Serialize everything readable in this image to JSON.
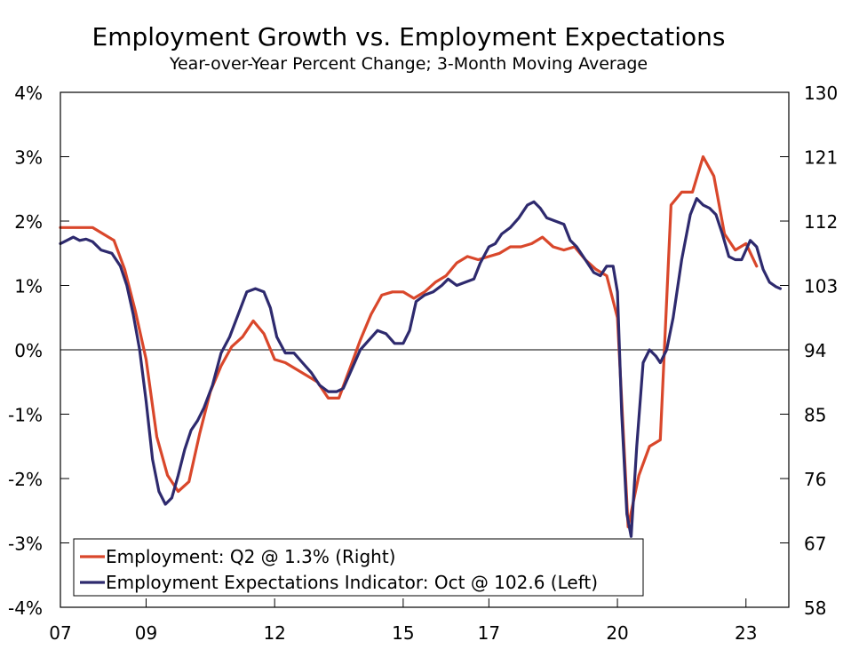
{
  "chart_data": {
    "type": "line",
    "title": "Employment Growth vs. Employment Expectations",
    "subtitle": "Year-over-Year Percent Change; 3-Month Moving Average",
    "x_axis": {
      "min": 2007,
      "max": 2024,
      "ticks": [
        2007,
        2009,
        2012,
        2015,
        2017,
        2020,
        2023
      ],
      "tick_labels": [
        "07",
        "09",
        "12",
        "15",
        "17",
        "20",
        "23"
      ]
    },
    "y_left": {
      "min": -4,
      "max": 4,
      "ticks": [
        -4,
        -3,
        -2,
        -1,
        0,
        1,
        2,
        3,
        4
      ],
      "tick_labels": [
        "-4%",
        "-3%",
        "-2%",
        "-1%",
        "0%",
        "1%",
        "2%",
        "3%",
        "4%"
      ]
    },
    "y_right": {
      "min": 58,
      "max": 130,
      "ticks": [
        58,
        67,
        76,
        85,
        94,
        103,
        112,
        121,
        130
      ],
      "tick_labels": [
        "58",
        "67",
        "76",
        "85",
        "94",
        "103",
        "112",
        "121",
        "130"
      ]
    },
    "zero_line": 0,
    "colors": {
      "employment": "#d9472b",
      "expectations": "#2e2a6e",
      "axis": "#000000"
    },
    "legend": {
      "placement": "bottom-left",
      "items": [
        {
          "label": "Employment: Q2 @ 1.3% (Right)",
          "series": "employment"
        },
        {
          "label": "Employment Expectations Indicator: Oct @ 102.6 (Left)",
          "series": "expectations"
        }
      ]
    },
    "series": [
      {
        "name": "employment",
        "color": "#d9472b",
        "points": [
          [
            2007.0,
            1.9
          ],
          [
            2007.25,
            1.9
          ],
          [
            2007.5,
            1.9
          ],
          [
            2007.75,
            1.9
          ],
          [
            2008.0,
            1.8
          ],
          [
            2008.25,
            1.7
          ],
          [
            2008.5,
            1.25
          ],
          [
            2008.75,
            0.6
          ],
          [
            2009.0,
            -0.15
          ],
          [
            2009.25,
            -1.35
          ],
          [
            2009.5,
            -1.95
          ],
          [
            2009.75,
            -2.2
          ],
          [
            2010.0,
            -2.05
          ],
          [
            2010.25,
            -1.3
          ],
          [
            2010.5,
            -0.65
          ],
          [
            2010.75,
            -0.25
          ],
          [
            2011.0,
            0.05
          ],
          [
            2011.25,
            0.2
          ],
          [
            2011.5,
            0.45
          ],
          [
            2011.75,
            0.25
          ],
          [
            2012.0,
            -0.15
          ],
          [
            2012.25,
            -0.2
          ],
          [
            2012.5,
            -0.3
          ],
          [
            2012.75,
            -0.4
          ],
          [
            2013.0,
            -0.5
          ],
          [
            2013.25,
            -0.75
          ],
          [
            2013.5,
            -0.75
          ],
          [
            2013.75,
            -0.3
          ],
          [
            2014.0,
            0.15
          ],
          [
            2014.25,
            0.55
          ],
          [
            2014.5,
            0.85
          ],
          [
            2014.75,
            0.9
          ],
          [
            2015.0,
            0.9
          ],
          [
            2015.25,
            0.8
          ],
          [
            2015.5,
            0.9
          ],
          [
            2015.75,
            1.05
          ],
          [
            2016.0,
            1.15
          ],
          [
            2016.25,
            1.35
          ],
          [
            2016.5,
            1.45
          ],
          [
            2016.75,
            1.4
          ],
          [
            2017.0,
            1.45
          ],
          [
            2017.25,
            1.5
          ],
          [
            2017.5,
            1.6
          ],
          [
            2017.75,
            1.6
          ],
          [
            2018.0,
            1.65
          ],
          [
            2018.25,
            1.75
          ],
          [
            2018.5,
            1.6
          ],
          [
            2018.75,
            1.55
          ],
          [
            2019.0,
            1.6
          ],
          [
            2019.25,
            1.4
          ],
          [
            2019.5,
            1.25
          ],
          [
            2019.75,
            1.15
          ],
          [
            2020.0,
            0.5
          ],
          [
            2020.25,
            -2.75
          ],
          [
            2020.5,
            -1.95
          ],
          [
            2020.75,
            -1.5
          ],
          [
            2021.0,
            -1.4
          ],
          [
            2021.25,
            2.25
          ],
          [
            2021.5,
            2.45
          ],
          [
            2021.75,
            2.45
          ],
          [
            2022.0,
            3.0
          ],
          [
            2022.25,
            2.7
          ],
          [
            2022.5,
            1.8
          ],
          [
            2022.75,
            1.55
          ],
          [
            2023.0,
            1.65
          ],
          [
            2023.25,
            1.3
          ]
        ]
      },
      {
        "name": "expectations",
        "color": "#2e2a6e",
        "points": [
          [
            2007.0,
            1.65
          ],
          [
            2007.15,
            1.7
          ],
          [
            2007.3,
            1.75
          ],
          [
            2007.45,
            1.7
          ],
          [
            2007.6,
            1.72
          ],
          [
            2007.75,
            1.68
          ],
          [
            2007.95,
            1.55
          ],
          [
            2008.2,
            1.5
          ],
          [
            2008.4,
            1.3
          ],
          [
            2008.55,
            1.0
          ],
          [
            2008.7,
            0.55
          ],
          [
            2008.85,
            0.0
          ],
          [
            2009.0,
            -0.8
          ],
          [
            2009.15,
            -1.7
          ],
          [
            2009.3,
            -2.2
          ],
          [
            2009.45,
            -2.4
          ],
          [
            2009.6,
            -2.3
          ],
          [
            2009.75,
            -1.95
          ],
          [
            2009.9,
            -1.55
          ],
          [
            2010.05,
            -1.25
          ],
          [
            2010.2,
            -1.1
          ],
          [
            2010.35,
            -0.9
          ],
          [
            2010.55,
            -0.55
          ],
          [
            2010.75,
            -0.05
          ],
          [
            2010.95,
            0.2
          ],
          [
            2011.15,
            0.55
          ],
          [
            2011.35,
            0.9
          ],
          [
            2011.55,
            0.95
          ],
          [
            2011.75,
            0.9
          ],
          [
            2011.9,
            0.65
          ],
          [
            2012.05,
            0.2
          ],
          [
            2012.25,
            -0.05
          ],
          [
            2012.45,
            -0.05
          ],
          [
            2012.65,
            -0.2
          ],
          [
            2012.85,
            -0.35
          ],
          [
            2013.05,
            -0.55
          ],
          [
            2013.25,
            -0.65
          ],
          [
            2013.45,
            -0.65
          ],
          [
            2013.6,
            -0.6
          ],
          [
            2013.8,
            -0.3
          ],
          [
            2014.0,
            0.0
          ],
          [
            2014.2,
            0.15
          ],
          [
            2014.4,
            0.3
          ],
          [
            2014.6,
            0.25
          ],
          [
            2014.8,
            0.1
          ],
          [
            2015.0,
            0.1
          ],
          [
            2015.15,
            0.3
          ],
          [
            2015.3,
            0.75
          ],
          [
            2015.5,
            0.85
          ],
          [
            2015.7,
            0.9
          ],
          [
            2015.9,
            1.0
          ],
          [
            2016.05,
            1.1
          ],
          [
            2016.25,
            1.0
          ],
          [
            2016.45,
            1.05
          ],
          [
            2016.65,
            1.1
          ],
          [
            2016.8,
            1.35
          ],
          [
            2017.0,
            1.6
          ],
          [
            2017.15,
            1.65
          ],
          [
            2017.3,
            1.8
          ],
          [
            2017.5,
            1.9
          ],
          [
            2017.7,
            2.05
          ],
          [
            2017.9,
            2.25
          ],
          [
            2018.05,
            2.3
          ],
          [
            2018.2,
            2.2
          ],
          [
            2018.35,
            2.05
          ],
          [
            2018.55,
            2.0
          ],
          [
            2018.75,
            1.95
          ],
          [
            2018.9,
            1.7
          ],
          [
            2019.05,
            1.6
          ],
          [
            2019.25,
            1.4
          ],
          [
            2019.45,
            1.2
          ],
          [
            2019.6,
            1.15
          ],
          [
            2019.75,
            1.3
          ],
          [
            2019.9,
            1.3
          ],
          [
            2020.0,
            0.9
          ],
          [
            2020.1,
            -1.0
          ],
          [
            2020.22,
            -2.55
          ],
          [
            2020.32,
            -2.9
          ],
          [
            2020.45,
            -1.5
          ],
          [
            2020.6,
            -0.2
          ],
          [
            2020.75,
            0.0
          ],
          [
            2020.9,
            -0.1
          ],
          [
            2021.0,
            -0.2
          ],
          [
            2021.15,
            0.0
          ],
          [
            2021.3,
            0.5
          ],
          [
            2021.5,
            1.4
          ],
          [
            2021.7,
            2.1
          ],
          [
            2021.85,
            2.35
          ],
          [
            2022.0,
            2.25
          ],
          [
            2022.15,
            2.2
          ],
          [
            2022.3,
            2.1
          ],
          [
            2022.45,
            1.8
          ],
          [
            2022.6,
            1.45
          ],
          [
            2022.75,
            1.4
          ],
          [
            2022.9,
            1.4
          ],
          [
            2023.0,
            1.55
          ],
          [
            2023.1,
            1.7
          ],
          [
            2023.25,
            1.6
          ],
          [
            2023.4,
            1.25
          ],
          [
            2023.55,
            1.05
          ],
          [
            2023.7,
            0.98
          ],
          [
            2023.8,
            0.95
          ]
        ]
      }
    ]
  }
}
